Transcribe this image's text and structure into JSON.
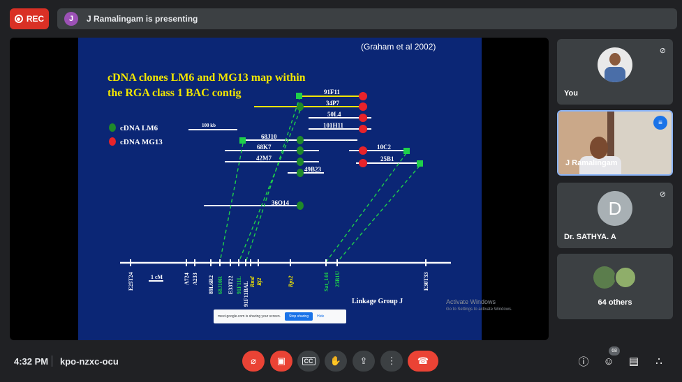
{
  "topbar": {
    "rec_label": "REC",
    "presenter_initial": "J",
    "presenting_text": "J Ramalingam is presenting"
  },
  "slide": {
    "citation": "(Graham et al 2002)",
    "title_line1": "cDNA clones LM6 and MG13 map within",
    "title_line2": "the RGA class 1  BAC contig",
    "legend": {
      "lm6": "cDNA LM6",
      "mg13": "cDNA MG13"
    },
    "scale_bar": "100 kb",
    "bac_clones": [
      "91F11",
      "34P7",
      "50L4",
      "101H11",
      "68J10",
      "68K7",
      "42M7",
      "49B23",
      "36O14",
      "10C2",
      "25B1"
    ],
    "linkage_markers": [
      "E25T24",
      "A724",
      "A233",
      "89L6R2",
      "68J10R",
      "E33T22",
      "91F11L",
      "91F11BAL",
      "Rmd",
      "Rj2",
      "Rps2",
      "Sat_144",
      "25B1U",
      "E30T33"
    ],
    "cm_scale": "1 cM",
    "linkage_group": "Linkage Group J",
    "colors": {
      "lm6": "#1f8a2a",
      "mg13": "#e8232a",
      "title": "#f2e600"
    }
  },
  "share_bar": {
    "message": "meet.google.com is sharing your screen.",
    "stop_label": "Stop sharing",
    "hide_label": "Hide"
  },
  "watermark": {
    "line1": "Activate Windows",
    "line2": "Go to Settings to activate Windows."
  },
  "participants": [
    {
      "name": "You",
      "muted": true
    },
    {
      "name": "J Ramalingam",
      "speaking": true
    },
    {
      "name": "Dr. SATHYA. A",
      "initial": "D",
      "muted": true
    },
    {
      "name": "64 others"
    }
  ],
  "bottombar": {
    "time": "4:32 PM",
    "meeting_code": "kpo-nzxc-ocu",
    "participant_count": "68"
  },
  "icons": [
    "mic-off-icon",
    "camera-off-icon",
    "captions-icon",
    "raise-hand-icon",
    "present-icon",
    "more-icon",
    "end-call-icon",
    "info-icon",
    "people-icon",
    "chat-icon",
    "activities-icon"
  ]
}
